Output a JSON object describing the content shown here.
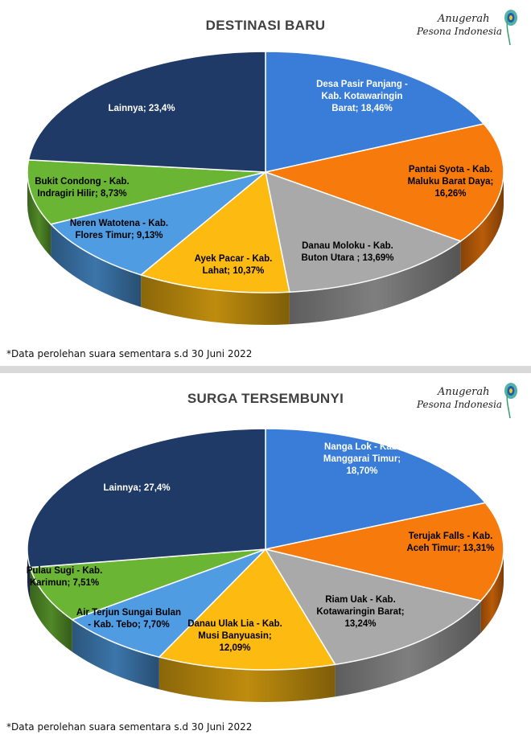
{
  "chart_data": [
    {
      "type": "pie",
      "title": "DESTINASI BARU",
      "footnote": "*Data perolehan suara sementara s.d 30 Juni 2022",
      "slices": [
        {
          "label": [
            "Desa Pasir Panjang -",
            "Kab. Kotawaringin",
            "Barat; 18,46%"
          ],
          "value": 18.46,
          "color": "#3a7dd8"
        },
        {
          "label": [
            "Pantai Syota - Kab.",
            "Maluku Barat Daya;",
            "16,26%"
          ],
          "value": 16.26,
          "color": "#f77a0c"
        },
        {
          "label": [
            "Danau Moloku - Kab.",
            "Buton Utara ; 13,69%"
          ],
          "value": 13.69,
          "color": "#a9a9a9"
        },
        {
          "label": [
            "Ayek Pacar - Kab.",
            "Lahat; 10,37%"
          ],
          "value": 10.37,
          "color": "#fdbb12"
        },
        {
          "label": [
            "Neren Watotena - Kab.",
            "Flores Timur; 9,13%"
          ],
          "value": 9.13,
          "color": "#4f9ce3"
        },
        {
          "label": [
            "Bukit Condong - Kab.",
            "Indragiri Hilir; 8,73%"
          ],
          "value": 8.73,
          "color": "#6ab534"
        },
        {
          "label": [
            "Lainnya; 23,4%"
          ],
          "value": 23.4,
          "color": "#1f3a66"
        }
      ]
    },
    {
      "type": "pie",
      "title": "SURGA TERSEMBUNYI",
      "footnote": "*Data perolehan suara sementara s.d 30 Juni 2022",
      "slices": [
        {
          "label": [
            "Nanga Lok - Kab.",
            "Manggarai Timur;",
            "18,70%"
          ],
          "value": 18.7,
          "color": "#3a7dd8"
        },
        {
          "label": [
            "Terujak Falls - Kab.",
            "Aceh Timur; 13,31%"
          ],
          "value": 13.31,
          "color": "#f77a0c"
        },
        {
          "label": [
            "Riam Uak - Kab.",
            "Kotawaringin Barat;",
            "13,24%"
          ],
          "value": 13.24,
          "color": "#a9a9a9"
        },
        {
          "label": [
            "Danau Ulak Lia - Kab.",
            "Musi Banyuasin;",
            "12,09%"
          ],
          "value": 12.09,
          "color": "#fdbb12"
        },
        {
          "label": [
            "Air Terjun Sungai Bulan",
            "- Kab. Tebo; 7,70%"
          ],
          "value": 7.7,
          "color": "#4f9ce3"
        },
        {
          "label": [
            "Pulau Sugi - Kab.",
            "Karimun; 7,51%"
          ],
          "value": 7.51,
          "color": "#6ab534"
        },
        {
          "label": [
            "Lainnya; 27,4%"
          ],
          "value": 27.4,
          "color": "#1f3a66"
        }
      ]
    }
  ],
  "logo": {
    "line1": "Anugerah",
    "line2": "Pesona Indonesia"
  }
}
